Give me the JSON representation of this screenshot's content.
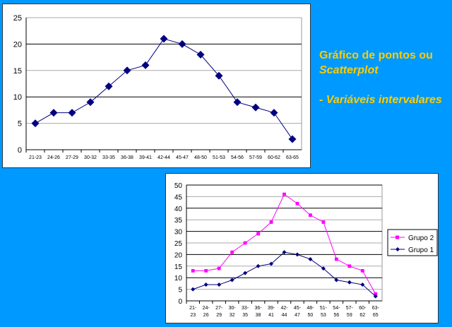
{
  "caption": {
    "line1": "Gráfico de pontos ou",
    "line2": "Scatterplot",
    "line3": "- Variáveis intervalares"
  },
  "chart_data": [
    {
      "type": "line",
      "title": "",
      "categories": [
        "21-23",
        "24-26",
        "27-29",
        "30-32",
        "33-35",
        "36-38",
        "39-41",
        "42-44",
        "45-47",
        "48-50",
        "51-53",
        "54-56",
        "57-59",
        "60-62",
        "63-65"
      ],
      "series": [
        {
          "name": "Grupo 1",
          "values": [
            5,
            7,
            7,
            9,
            12,
            15,
            16,
            21,
            20,
            18,
            14,
            9,
            8,
            7,
            2
          ],
          "color": "#000080",
          "marker": "diamond"
        }
      ],
      "ylim": [
        0,
        25
      ],
      "yticks": [
        0,
        5,
        10,
        15,
        20,
        25
      ],
      "grid": true,
      "legend": "none"
    },
    {
      "type": "line",
      "title": "",
      "categories": [
        "21-23",
        "24-26",
        "27-29",
        "30-32",
        "33-35",
        "36-38",
        "39-41",
        "42-44",
        "45-47",
        "48-50",
        "51-53",
        "54-56",
        "57-59",
        "60-62",
        "63-65"
      ],
      "series": [
        {
          "name": "Grupo 2",
          "values": [
            13,
            13,
            14,
            21,
            25,
            29,
            34,
            46,
            42,
            37,
            34,
            18,
            15,
            13,
            3
          ],
          "color": "#ff00ff",
          "marker": "square"
        },
        {
          "name": "Grupo 1",
          "values": [
            5,
            7,
            7,
            9,
            12,
            15,
            16,
            21,
            20,
            18,
            14,
            9,
            8,
            7,
            2
          ],
          "color": "#000080",
          "marker": "diamond"
        }
      ],
      "ylim": [
        0,
        50
      ],
      "yticks": [
        0,
        5,
        10,
        15,
        20,
        25,
        30,
        35,
        40,
        45,
        50
      ],
      "grid": true,
      "legend": "right"
    }
  ]
}
